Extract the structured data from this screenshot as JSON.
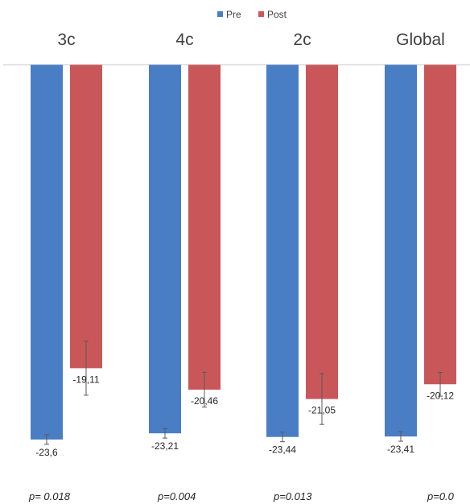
{
  "chart_data": {
    "type": "bar",
    "categories": [
      "3c",
      "4c",
      "2c",
      "Global"
    ],
    "series": [
      {
        "name": "Pre",
        "color": "#4a7ec4",
        "values": [
          -23.6,
          -23.21,
          -23.44,
          -23.41
        ],
        "labels": [
          "-23,6",
          "-23,21",
          "-23,44",
          "-23,41"
        ],
        "errors": [
          0.3,
          0.3,
          0.3,
          0.3
        ]
      },
      {
        "name": "Post",
        "color": "#c9575a",
        "values": [
          -19.11,
          -20.46,
          -21.05,
          -20.12
        ],
        "labels": [
          "-19,11",
          "-20,46",
          "-21,05",
          "-20,12"
        ],
        "errors": [
          1.7,
          1.1,
          1.6,
          0.75
        ]
      }
    ],
    "p_values": [
      "p= 0.018",
      "p=0.004",
      "p=0.013",
      "p=0.0"
    ],
    "ylim": [
      -25,
      0
    ],
    "legend_position": "top-center",
    "grid": false
  }
}
